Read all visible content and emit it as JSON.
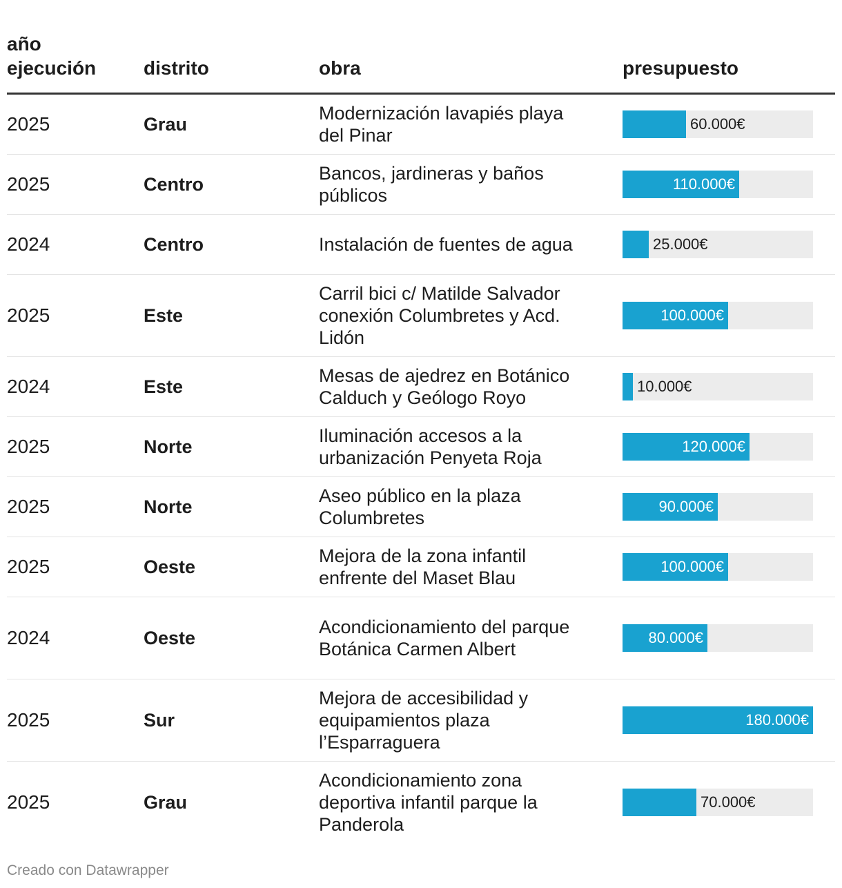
{
  "columns": {
    "year": "año ejecución",
    "district": "distrito",
    "work": "obra",
    "budget": "presupuesto"
  },
  "chart_data": {
    "type": "table",
    "xlim": [
      0,
      180000
    ],
    "bar_color": "#19a2d0",
    "track_color": "#ececec",
    "rows": [
      {
        "year": "2025",
        "district": "Grau",
        "work": "Modernización lavapiés playa del Pinar",
        "value": 60000,
        "label": "60.000€"
      },
      {
        "year": "2025",
        "district": "Centro",
        "work": "Bancos, jardineras y baños públicos",
        "value": 110000,
        "label": "110.000€"
      },
      {
        "year": "2024",
        "district": "Centro",
        "work": "Instalación de fuentes de agua",
        "value": 25000,
        "label": "25.000€"
      },
      {
        "year": "2025",
        "district": "Este",
        "work": "Carril bici c/ Matilde Salvador conexión Columbretes y Acd. Lidón",
        "value": 100000,
        "label": "100.000€"
      },
      {
        "year": "2024",
        "district": "Este",
        "work": "Mesas de ajedrez en Botánico Calduch y Geólogo Royo",
        "value": 10000,
        "label": "10.000€"
      },
      {
        "year": "2025",
        "district": "Norte",
        "work": "Iluminación accesos a la urbanización Penyeta Roja",
        "value": 120000,
        "label": "120.000€"
      },
      {
        "year": "2025",
        "district": "Norte",
        "work": "Aseo público en la plaza Columbretes",
        "value": 90000,
        "label": "90.000€"
      },
      {
        "year": "2025",
        "district": "Oeste",
        "work": "Mejora de la zona infantil enfrente del Maset Blau",
        "value": 100000,
        "label": "100.000€"
      },
      {
        "year": "2024",
        "district": "Oeste",
        "work": "Acondicionamiento del parque Botánica Carmen Albert",
        "value": 80000,
        "label": "80.000€"
      },
      {
        "year": "2025",
        "district": "Sur",
        "work": "Mejora de accesibilidad y equipamientos plaza l’Esparraguera",
        "value": 180000,
        "label": "180.000€"
      },
      {
        "year": "2025",
        "district": "Grau",
        "work": "Acondicionamiento zona deportiva infantil parque la Panderola",
        "value": 70000,
        "label": "70.000€"
      }
    ]
  },
  "footer": "Creado con Datawrapper"
}
